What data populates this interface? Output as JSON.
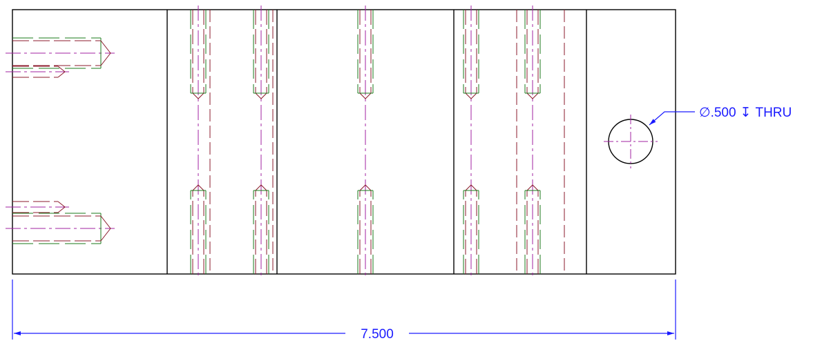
{
  "drawing": {
    "hole_callout": {
      "diameter_symbol": "∅",
      "text": ".500",
      "depth_symbol": "↧",
      "suffix": "THRU"
    },
    "overall_width_dimension": "7.500"
  },
  "colors": {
    "outline": "#000000",
    "hidden_red": "#8b1a2b",
    "hidden_green": "#1a7a1a",
    "centerline": "#a020a0",
    "dimension": "#1a1aff"
  }
}
